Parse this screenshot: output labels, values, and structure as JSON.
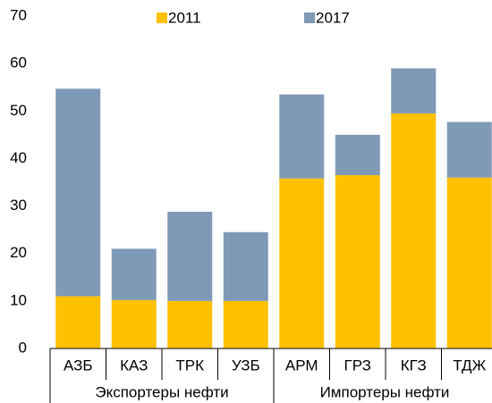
{
  "chart_data": {
    "type": "stacked_bar",
    "categories": [
      "АЗБ",
      "КАЗ",
      "ТРК",
      "УЗБ",
      "АРМ",
      "ГРЗ",
      "КГЗ",
      "ТДЖ"
    ],
    "groups": [
      {
        "label": "Экспортеры нефти",
        "categories": [
          "АЗБ",
          "КАЗ",
          "ТРК",
          "УЗБ"
        ]
      },
      {
        "label": "Импортеры нефти",
        "categories": [
          "АРМ",
          "ГРЗ",
          "КГЗ",
          "ТДЖ"
        ]
      }
    ],
    "series": [
      {
        "name": "2011",
        "color": "#FFC000",
        "values": [
          11,
          10.2,
          10,
          10,
          35.8,
          36.5,
          49.5,
          36
        ]
      },
      {
        "name": "2017",
        "color": "#7F9AB7",
        "values": [
          43.7,
          10.8,
          18.8,
          14.5,
          17.7,
          8.5,
          9.5,
          11.7
        ]
      }
    ],
    "ylim": [
      0,
      70
    ],
    "yticks": [
      0,
      10,
      20,
      30,
      40,
      50,
      60,
      70
    ],
    "grid": false
  }
}
